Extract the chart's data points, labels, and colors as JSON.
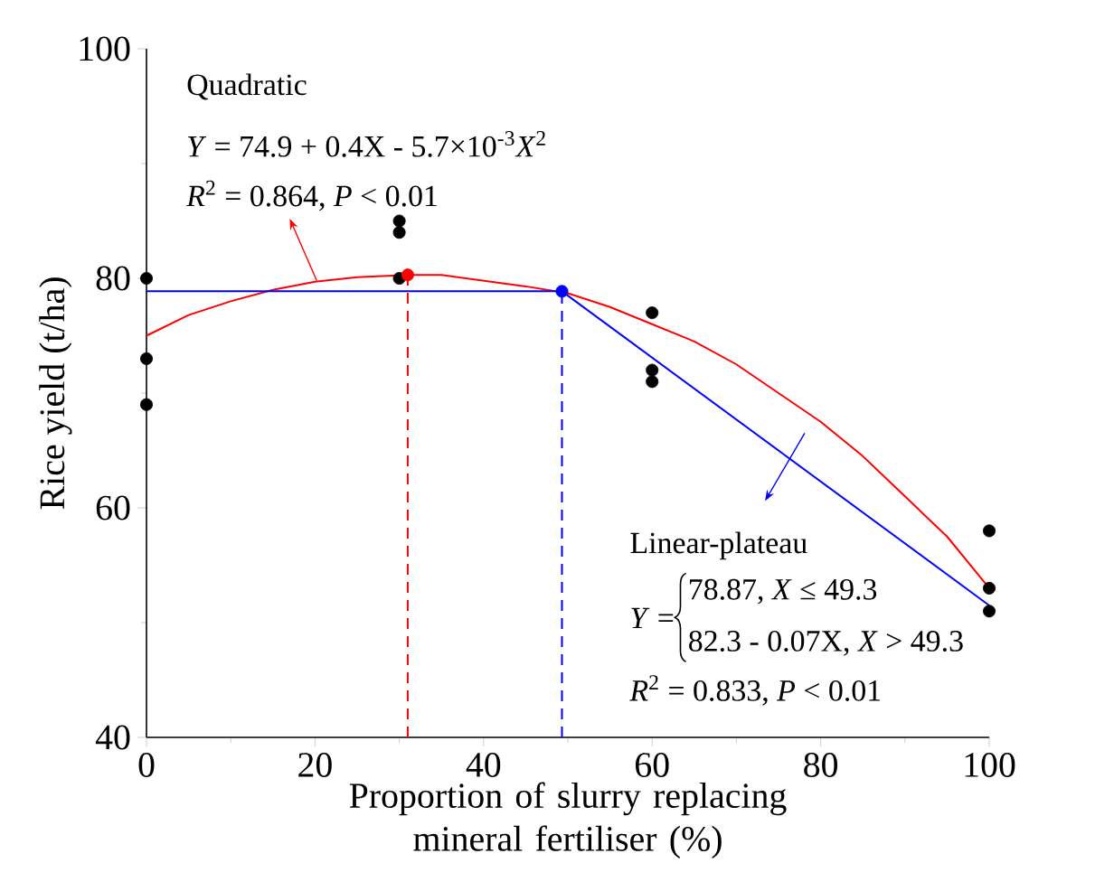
{
  "chart_data": {
    "type": "scatter",
    "xlabel": "Proportion of slurry replacing mineral fertiliser (%)",
    "ylabel": "Rice yield (t/ha)",
    "xlim": [
      0,
      100
    ],
    "ylim": [
      40,
      100
    ],
    "xticks": [
      0,
      20,
      40,
      60,
      80,
      100
    ],
    "yticks": [
      40,
      60,
      80,
      100
    ],
    "series": [
      {
        "type": "line",
        "marker": "none",
        "color": "#ff0000",
        "x": [
          0,
          5,
          10,
          15,
          20,
          25,
          31,
          35,
          40,
          45,
          50,
          55,
          60,
          65,
          70,
          75,
          80,
          85,
          90,
          95,
          100
        ],
        "values": [
          75,
          76.8,
          78,
          79,
          79.7,
          80.1,
          80.3,
          80.3,
          79.8,
          79.3,
          78.7,
          77.5,
          76,
          74.5,
          72.5,
          70,
          67.5,
          64.5,
          61,
          57.5,
          53
        ]
      },
      {
        "type": "line",
        "marker": "none",
        "color": "#0000ff",
        "x": [
          0,
          49.3,
          100
        ],
        "values": [
          78.87,
          78.87,
          51.5
        ]
      },
      {
        "type": "line",
        "marker": "none",
        "color": "#ff0000",
        "line_style": "dashed",
        "x": [
          31,
          31
        ],
        "values": [
          40,
          80.3
        ]
      },
      {
        "type": "line",
        "marker": "none",
        "color": "#0000ff",
        "line_style": "dashed",
        "x": [
          49.3,
          49.3
        ],
        "values": [
          40,
          78.87
        ]
      },
      {
        "marker": "circle",
        "color": "#000000",
        "x": [
          0,
          0,
          0,
          30,
          30,
          30,
          60,
          60,
          60,
          100,
          100,
          100
        ],
        "values": [
          80,
          73,
          69,
          80,
          84,
          85,
          77,
          72,
          71,
          58,
          53,
          51
        ]
      },
      {
        "type": "scatter",
        "marker": "circle",
        "color": "#ff0000",
        "x": [
          31
        ],
        "values": [
          80.3
        ]
      },
      {
        "type": "scatter",
        "marker": "circle",
        "color": "#0000ff",
        "x": [
          49.3
        ],
        "values": [
          78.87
        ]
      }
    ],
    "annotations": [
      "Quadratic",
      "*Y* = 74.9 + 0.4X - 5.7×10$^{-3}$*X*$^{2}$",
      "*R*$^{2}$ = 0.864,   *P* < 0.01",
      "Linear-plateau",
      "*Y* =",
      "78.87, *X* ≤ 49.3",
      "82.3 - 0.07X, *X* > 49.3",
      "*R*$^{2}$ = 0.833,   *P* < 0.01"
    ]
  }
}
